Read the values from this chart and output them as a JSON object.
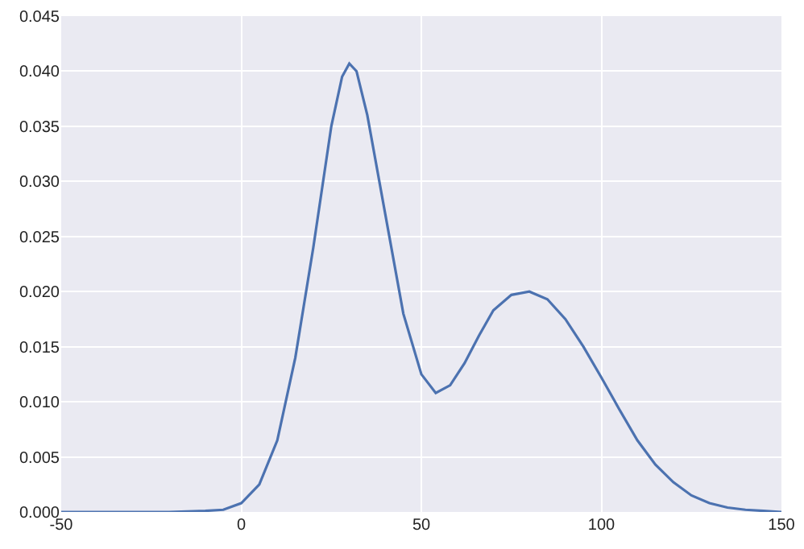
{
  "chart_data": {
    "type": "line",
    "x": [
      -50,
      -20,
      -10,
      -5,
      0,
      5,
      10,
      15,
      20,
      25,
      28,
      30,
      32,
      35,
      40,
      45,
      50,
      54,
      58,
      62,
      66,
      70,
      75,
      80,
      85,
      90,
      95,
      100,
      105,
      110,
      115,
      120,
      125,
      130,
      135,
      140,
      145,
      150
    ],
    "series": [
      {
        "color": "#4c72b0",
        "values": [
          0,
          0,
          0.0001,
          0.0002,
          0.0008,
          0.0025,
          0.0065,
          0.014,
          0.024,
          0.035,
          0.0395,
          0.0407,
          0.04,
          0.036,
          0.027,
          0.018,
          0.0125,
          0.0108,
          0.0115,
          0.0135,
          0.016,
          0.0183,
          0.0197,
          0.02,
          0.0193,
          0.0175,
          0.015,
          0.0122,
          0.0093,
          0.0065,
          0.0043,
          0.0027,
          0.0015,
          0.0008,
          0.0004,
          0.0002,
          0.0001,
          0
        ]
      }
    ],
    "xlim": [
      -50,
      150
    ],
    "xticks": [
      -50,
      0,
      50,
      100,
      150
    ],
    "ylim": [
      0,
      0.045
    ],
    "yticks": [
      {
        "value": 0,
        "label": "0.000"
      },
      {
        "value": 0.005,
        "label": "0.005"
      },
      {
        "value": 0.01,
        "label": "0.010"
      },
      {
        "value": 0.015,
        "label": "0.015"
      },
      {
        "value": 0.02,
        "label": "0.020"
      },
      {
        "value": 0.025,
        "label": "0.025"
      },
      {
        "value": 0.03,
        "label": "0.030"
      },
      {
        "value": 0.035,
        "label": "0.035"
      },
      {
        "value": 0.04,
        "label": "0.040"
      },
      {
        "value": 0.045,
        "label": "0.045"
      }
    ],
    "grid": true,
    "marker": "none",
    "line_style": "solid"
  }
}
